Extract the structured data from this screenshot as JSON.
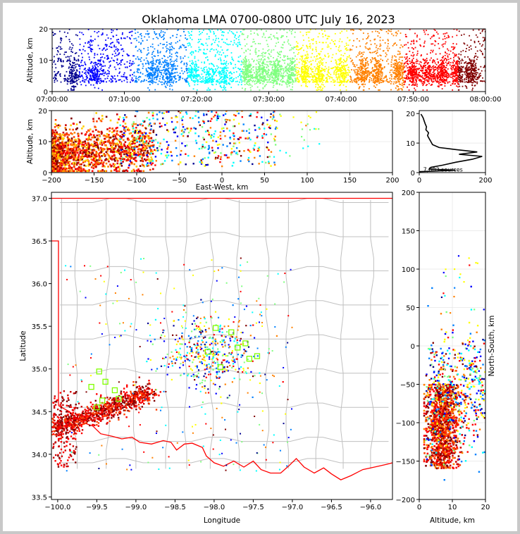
{
  "chart_data": [
    {
      "type": "scatter",
      "panel": "altitude-time",
      "title": "Oklahoma LMA 0700-0800 UTC July 16, 2023",
      "xlabel": "",
      "ylabel": "Altitude, km",
      "xlim": [
        "07:00:00",
        "08:00:00"
      ],
      "ylim": [
        0,
        20
      ],
      "x_ticks": [
        "07:00:00",
        "07:10:00",
        "07:20:00",
        "07:30:00",
        "07:40:00",
        "07:50:00",
        "08:00:00"
      ],
      "y_ticks": [
        "0",
        "10",
        "20"
      ],
      "color_by": "time",
      "colormap": [
        "#00008f",
        "#0000ff",
        "#0080ff",
        "#00ffff",
        "#80ff80",
        "#ffff00",
        "#ff8000",
        "#ff0000",
        "#800000"
      ],
      "density_clusters": [
        {
          "minute": 3,
          "alt_center": 5,
          "strength": 1.2
        },
        {
          "minute": 6,
          "alt_center": 6,
          "strength": 1.4
        },
        {
          "minute": 14,
          "alt_center": 6,
          "strength": 1.3
        },
        {
          "minute": 16,
          "alt_center": 6,
          "strength": 1.4
        },
        {
          "minute": 19.5,
          "alt_center": 6,
          "strength": 1.1
        },
        {
          "minute": 22,
          "alt_center": 5,
          "strength": 0.9
        },
        {
          "minute": 24,
          "alt_center": 5,
          "strength": 1.0
        },
        {
          "minute": 27,
          "alt_center": 6,
          "strength": 1.6
        },
        {
          "minute": 29,
          "alt_center": 6,
          "strength": 1.5
        },
        {
          "minute": 31,
          "alt_center": 6,
          "strength": 1.8
        },
        {
          "minute": 33,
          "alt_center": 6,
          "strength": 1.4
        },
        {
          "minute": 35,
          "alt_center": 6,
          "strength": 1.5
        },
        {
          "minute": 37,
          "alt_center": 5,
          "strength": 1.2
        },
        {
          "minute": 40,
          "alt_center": 6,
          "strength": 1.4
        },
        {
          "minute": 43,
          "alt_center": 6,
          "strength": 1.6
        },
        {
          "minute": 45,
          "alt_center": 6,
          "strength": 1.5
        },
        {
          "minute": 48,
          "alt_center": 6,
          "strength": 1.8
        },
        {
          "minute": 50,
          "alt_center": 6,
          "strength": 2.0
        },
        {
          "minute": 52,
          "alt_center": 6,
          "strength": 1.6
        },
        {
          "minute": 54,
          "alt_center": 6,
          "strength": 1.8
        },
        {
          "minute": 56,
          "alt_center": 6,
          "strength": 1.7
        },
        {
          "minute": 58,
          "alt_center": 6,
          "strength": 1.9
        }
      ]
    },
    {
      "type": "scatter",
      "panel": "east-west-altitude",
      "xlabel": "East-West, km",
      "ylabel": "Altitude, km",
      "xlim": [
        -200,
        200
      ],
      "ylim": [
        0,
        20
      ],
      "x_ticks": [
        "−200",
        "−150",
        "−100",
        "−50",
        "0",
        "50",
        "100",
        "150",
        "200"
      ],
      "y_ticks": [
        "0",
        "10",
        "20"
      ],
      "color_by": "time"
    },
    {
      "type": "line",
      "panel": "altitude-histogram",
      "xlim": [
        0,
        200
      ],
      "ylim": [
        0,
        20
      ],
      "x_ticks": [
        "0",
        "200"
      ],
      "y_ticks": [
        "0",
        "10",
        "20"
      ],
      "annotation": "7,883 sources",
      "profile": [
        {
          "alt": 0.3,
          "count": 0
        },
        {
          "alt": 0.8,
          "count": 110
        },
        {
          "alt": 1.2,
          "count": 30
        },
        {
          "alt": 1.8,
          "count": 35
        },
        {
          "alt": 2.5,
          "count": 70
        },
        {
          "alt": 3.5,
          "count": 110
        },
        {
          "alt": 4.5,
          "count": 160
        },
        {
          "alt": 5.5,
          "count": 190
        },
        {
          "alt": 6.2,
          "count": 120
        },
        {
          "alt": 7.0,
          "count": 175
        },
        {
          "alt": 7.8,
          "count": 110
        },
        {
          "alt": 8.5,
          "count": 60
        },
        {
          "alt": 9.5,
          "count": 40
        },
        {
          "alt": 10.5,
          "count": 35
        },
        {
          "alt": 11.5,
          "count": 30
        },
        {
          "alt": 12.5,
          "count": 25
        },
        {
          "alt": 13.5,
          "count": 28
        },
        {
          "alt": 14.5,
          "count": 20
        },
        {
          "alt": 15.5,
          "count": 22
        },
        {
          "alt": 16.5,
          "count": 18
        },
        {
          "alt": 17.5,
          "count": 15
        },
        {
          "alt": 18.5,
          "count": 12
        },
        {
          "alt": 19.3,
          "count": 8
        },
        {
          "alt": 19.8,
          "count": 5
        }
      ]
    },
    {
      "type": "scatter",
      "panel": "plan-view-map",
      "xlabel": "Longitude",
      "ylabel": "Latitude",
      "xlim": [
        -100.08,
        -95.72
      ],
      "ylim": [
        33.47,
        37.07
      ],
      "x_ticks": [
        "−100.0",
        "−99.5",
        "−99.0",
        "−98.5",
        "−98.0",
        "−97.5",
        "−97.0",
        "−96.5",
        "−96.0"
      ],
      "y_ticks": [
        "33.5",
        "34.0",
        "34.5",
        "35.0",
        "35.5",
        "36.0",
        "36.5",
        "37.0"
      ],
      "border_color": "#ff0000",
      "county_line_color": "#c0c0c0",
      "station_marker_color": "#80ff00",
      "stations": [
        {
          "lon": -99.47,
          "lat": 34.97
        },
        {
          "lon": -99.57,
          "lat": 34.79
        },
        {
          "lon": -99.39,
          "lat": 34.85
        },
        {
          "lon": -99.27,
          "lat": 34.75
        },
        {
          "lon": -99.22,
          "lat": 34.65
        },
        {
          "lon": -99.43,
          "lat": 34.63
        },
        {
          "lon": -99.5,
          "lat": 34.55
        },
        {
          "lon": -98.08,
          "lat": 35.2
        },
        {
          "lon": -97.98,
          "lat": 35.48
        },
        {
          "lon": -97.78,
          "lat": 35.43
        },
        {
          "lon": -97.7,
          "lat": 35.25
        },
        {
          "lon": -97.55,
          "lat": 35.12
        },
        {
          "lon": -97.45,
          "lat": 35.15
        },
        {
          "lon": -97.92,
          "lat": 35.02
        },
        {
          "lon": -97.6,
          "lat": 35.3
        }
      ]
    },
    {
      "type": "scatter",
      "panel": "altitude-north-south",
      "xlabel": "Altitude, km",
      "ylabel": "North-South, km",
      "xlim": [
        0,
        20
      ],
      "ylim": [
        -200,
        200
      ],
      "x_ticks": [
        "0",
        "10",
        "20"
      ],
      "y_ticks": [
        "−200",
        "−150",
        "−100",
        "−50",
        "0",
        "50",
        "100",
        "150",
        "200"
      ],
      "color_by": "time"
    }
  ]
}
